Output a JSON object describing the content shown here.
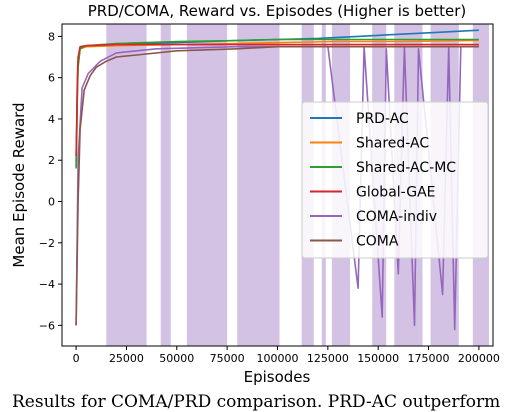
{
  "chart_data": {
    "type": "line",
    "title": "PRD/COMA, Reward vs. Episodes (Higher is better)",
    "xlabel": "Episodes",
    "ylabel": "Mean Episode Reward",
    "xlim": [
      -7000,
      207000
    ],
    "ylim": [
      -7.0,
      8.6
    ],
    "xticks": [
      0,
      25000,
      50000,
      75000,
      100000,
      125000,
      150000,
      175000,
      200000
    ],
    "yticks": [
      -6,
      -4,
      -2,
      0,
      2,
      4,
      6,
      8
    ],
    "grid": false,
    "legend_position": "center-right",
    "series": [
      {
        "name": "PRD-AC",
        "color": "#1f77b4",
        "points": [
          [
            0,
            1.9
          ],
          [
            300,
            3.5
          ],
          [
            600,
            5.5
          ],
          [
            1000,
            6.8
          ],
          [
            2000,
            7.45
          ],
          [
            5000,
            7.55
          ],
          [
            20000,
            7.6
          ],
          [
            50000,
            7.7
          ],
          [
            80000,
            7.8
          ],
          [
            100000,
            7.85
          ],
          [
            120000,
            7.9
          ],
          [
            140000,
            8.0
          ],
          [
            160000,
            8.1
          ],
          [
            180000,
            8.2
          ],
          [
            200000,
            8.3
          ]
        ]
      },
      {
        "name": "Shared-AC",
        "color": "#ff7f0e",
        "points": [
          [
            0,
            1.7
          ],
          [
            300,
            3.2
          ],
          [
            600,
            5.2
          ],
          [
            1000,
            6.6
          ],
          [
            2000,
            7.4
          ],
          [
            5000,
            7.5
          ],
          [
            20000,
            7.55
          ],
          [
            50000,
            7.6
          ],
          [
            80000,
            7.65
          ],
          [
            100000,
            7.7
          ],
          [
            130000,
            7.75
          ],
          [
            160000,
            7.75
          ],
          [
            200000,
            7.8
          ]
        ]
      },
      {
        "name": "Shared-AC-MC",
        "color": "#2ca02c",
        "points": [
          [
            0,
            1.6
          ],
          [
            300,
            3.0
          ],
          [
            600,
            5.0
          ],
          [
            1000,
            6.5
          ],
          [
            2000,
            7.4
          ],
          [
            5000,
            7.55
          ],
          [
            20000,
            7.65
          ],
          [
            50000,
            7.75
          ],
          [
            80000,
            7.8
          ],
          [
            100000,
            7.85
          ],
          [
            130000,
            7.85
          ],
          [
            160000,
            7.85
          ],
          [
            200000,
            7.85
          ]
        ]
      },
      {
        "name": "Global-GAE",
        "color": "#d62728",
        "points": [
          [
            0,
            2.2
          ],
          [
            300,
            3.8
          ],
          [
            600,
            5.8
          ],
          [
            1000,
            7.0
          ],
          [
            2000,
            7.5
          ],
          [
            5000,
            7.55
          ],
          [
            20000,
            7.6
          ],
          [
            50000,
            7.6
          ],
          [
            80000,
            7.6
          ],
          [
            100000,
            7.6
          ],
          [
            130000,
            7.6
          ],
          [
            160000,
            7.6
          ],
          [
            200000,
            7.6
          ]
        ]
      },
      {
        "name": "COMA-indiv",
        "color": "#9467bd",
        "points": [
          [
            0,
            -6.0
          ],
          [
            1000,
            2.0
          ],
          [
            3000,
            5.5
          ],
          [
            6000,
            6.2
          ],
          [
            12000,
            6.8
          ],
          [
            20000,
            7.2
          ],
          [
            40000,
            7.4
          ],
          [
            80000,
            7.5
          ],
          [
            100000,
            7.5
          ],
          [
            125000,
            7.5
          ],
          [
            140000,
            -4.2
          ],
          [
            143000,
            7.5
          ],
          [
            152000,
            -5.6
          ],
          [
            154000,
            7.4
          ],
          [
            160000,
            -3.5
          ],
          [
            163000,
            7.5
          ],
          [
            168000,
            -6.0
          ],
          [
            170000,
            7.4
          ],
          [
            182000,
            -4.5
          ],
          [
            185000,
            7.5
          ],
          [
            188000,
            -6.2
          ],
          [
            191000,
            7.5
          ],
          [
            200000,
            7.5
          ]
        ]
      },
      {
        "name": "COMA",
        "color": "#8c564b",
        "points": [
          [
            0,
            -6.0
          ],
          [
            1000,
            0.0
          ],
          [
            2000,
            3.5
          ],
          [
            4000,
            5.4
          ],
          [
            7000,
            6.1
          ],
          [
            10000,
            6.5
          ],
          [
            15000,
            6.8
          ],
          [
            20000,
            7.0
          ],
          [
            30000,
            7.1
          ],
          [
            50000,
            7.3
          ],
          [
            80000,
            7.4
          ],
          [
            100000,
            7.5
          ],
          [
            150000,
            7.5
          ],
          [
            200000,
            7.5
          ]
        ]
      }
    ],
    "shaded_bands": [
      {
        "series": "COMA-indiv",
        "color": "#9467bd",
        "alpha": 0.4,
        "ranges": [
          [
            15000,
            35000
          ],
          [
            42000,
            47000
          ],
          [
            55000,
            75000
          ],
          [
            80000,
            101000
          ],
          [
            112000,
            118000
          ],
          [
            122000,
            124000
          ],
          [
            127000,
            136000
          ],
          [
            147000,
            154000
          ],
          [
            158000,
            172000
          ],
          [
            176000,
            190000
          ],
          [
            197000,
            205000
          ]
        ]
      }
    ]
  },
  "caption": {
    "text": "Results for COMA/PRD comparison. PRD-AC outperform"
  }
}
